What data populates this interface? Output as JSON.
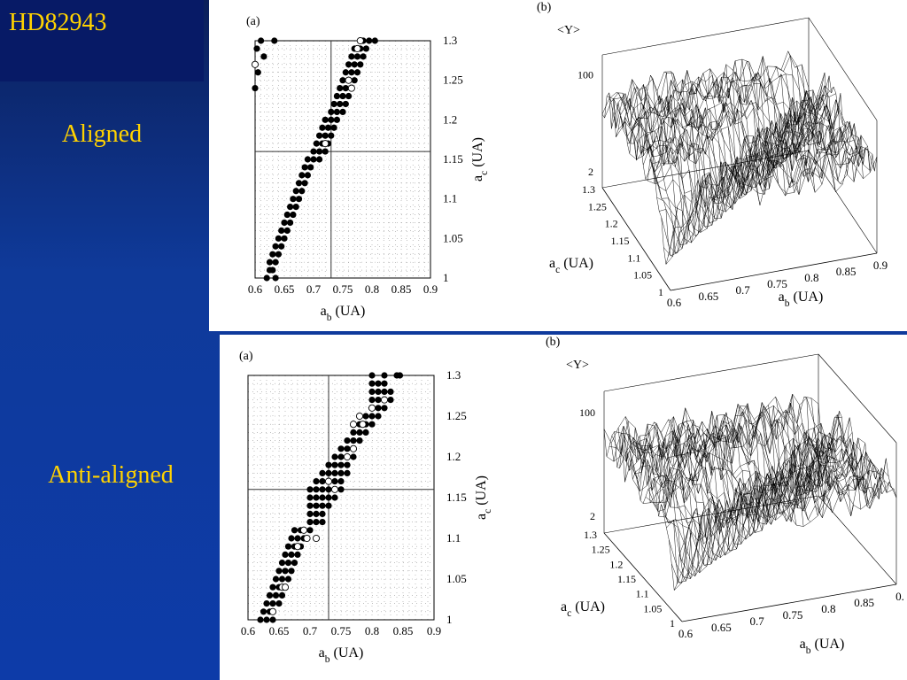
{
  "slide": {
    "title": "HD82943",
    "labels": {
      "aligned": "Aligned",
      "anti_aligned": "Anti-aligned"
    },
    "colors": {
      "background": "#0d3ba8",
      "title_box": "#071a66",
      "text": "#ffd200"
    }
  },
  "chart_data": [
    {
      "type": "scatter",
      "panel_label": "(a)",
      "group": "Aligned",
      "xlabel": "a_b (UA)",
      "ylabel": "a_c (UA)",
      "xlim": [
        0.6,
        0.9
      ],
      "ylim": [
        1.0,
        1.3
      ],
      "xticks": [
        "0.6",
        "0.65",
        "0.7",
        "0.75",
        "0.8",
        "0.85",
        "0.9"
      ],
      "yticks": [
        "1",
        "1.05",
        "1.1",
        "1.15",
        "1.2",
        "1.25",
        "1.3"
      ],
      "marked_lines": {
        "x": 0.73,
        "y": 1.16
      },
      "grid": "dotted",
      "filled": [
        [
          0.62,
          1.0
        ],
        [
          0.635,
          1.0
        ],
        [
          0.625,
          1.01
        ],
        [
          0.63,
          1.01
        ],
        [
          0.625,
          1.02
        ],
        [
          0.635,
          1.02
        ],
        [
          0.63,
          1.03
        ],
        [
          0.64,
          1.03
        ],
        [
          0.635,
          1.04
        ],
        [
          0.645,
          1.04
        ],
        [
          0.64,
          1.05
        ],
        [
          0.65,
          1.05
        ],
        [
          0.645,
          1.06
        ],
        [
          0.655,
          1.06
        ],
        [
          0.65,
          1.07
        ],
        [
          0.66,
          1.07
        ],
        [
          0.655,
          1.08
        ],
        [
          0.665,
          1.08
        ],
        [
          0.66,
          1.09
        ],
        [
          0.67,
          1.09
        ],
        [
          0.665,
          1.1
        ],
        [
          0.675,
          1.1
        ],
        [
          0.67,
          1.11
        ],
        [
          0.68,
          1.11
        ],
        [
          0.675,
          1.12
        ],
        [
          0.685,
          1.12
        ],
        [
          0.68,
          1.13
        ],
        [
          0.69,
          1.13
        ],
        [
          0.685,
          1.14
        ],
        [
          0.695,
          1.14
        ],
        [
          0.69,
          1.15
        ],
        [
          0.7,
          1.15
        ],
        [
          0.71,
          1.15
        ],
        [
          0.7,
          1.16
        ],
        [
          0.71,
          1.16
        ],
        [
          0.72,
          1.16
        ],
        [
          0.705,
          1.17
        ],
        [
          0.715,
          1.17
        ],
        [
          0.725,
          1.17
        ],
        [
          0.71,
          1.18
        ],
        [
          0.72,
          1.18
        ],
        [
          0.73,
          1.18
        ],
        [
          0.715,
          1.19
        ],
        [
          0.725,
          1.19
        ],
        [
          0.735,
          1.19
        ],
        [
          0.72,
          1.2
        ],
        [
          0.73,
          1.2
        ],
        [
          0.74,
          1.2
        ],
        [
          0.73,
          1.21
        ],
        [
          0.74,
          1.21
        ],
        [
          0.75,
          1.21
        ],
        [
          0.735,
          1.22
        ],
        [
          0.745,
          1.22
        ],
        [
          0.755,
          1.22
        ],
        [
          0.74,
          1.23
        ],
        [
          0.75,
          1.23
        ],
        [
          0.76,
          1.23
        ],
        [
          0.745,
          1.24
        ],
        [
          0.755,
          1.24
        ],
        [
          0.765,
          1.24
        ],
        [
          0.75,
          1.25
        ],
        [
          0.76,
          1.25
        ],
        [
          0.77,
          1.25
        ],
        [
          0.755,
          1.26
        ],
        [
          0.765,
          1.26
        ],
        [
          0.775,
          1.26
        ],
        [
          0.76,
          1.27
        ],
        [
          0.77,
          1.27
        ],
        [
          0.78,
          1.27
        ],
        [
          0.765,
          1.28
        ],
        [
          0.775,
          1.28
        ],
        [
          0.785,
          1.28
        ],
        [
          0.77,
          1.29
        ],
        [
          0.78,
          1.29
        ],
        [
          0.79,
          1.29
        ],
        [
          0.785,
          1.3
        ],
        [
          0.795,
          1.3
        ],
        [
          0.805,
          1.3
        ],
        [
          0.603,
          1.29
        ],
        [
          0.61,
          1.3
        ],
        [
          0.615,
          1.28
        ],
        [
          0.605,
          1.26
        ],
        [
          0.6,
          1.24
        ],
        [
          0.633,
          1.3
        ]
      ],
      "open": [
        [
          0.6,
          1.27
        ],
        [
          0.78,
          1.3
        ],
        [
          0.76,
          1.25
        ],
        [
          0.765,
          1.24
        ],
        [
          0.72,
          1.17
        ],
        [
          0.775,
          1.29
        ]
      ]
    },
    {
      "type": "surface3d",
      "panel_label": "(b)",
      "group": "Aligned",
      "zlabel": "<Y>",
      "xlabel": "a_b (UA)",
      "ylabel": "a_c (UA)",
      "xticks": [
        "0.6",
        "0.65",
        "0.7",
        "0.75",
        "0.8",
        "0.85",
        "0.9"
      ],
      "yticks": [
        "1",
        "1.05",
        "1.1",
        "1.15",
        "1.2",
        "1.25",
        "1.3"
      ],
      "zticks": [
        "2",
        "100"
      ]
    },
    {
      "type": "scatter",
      "panel_label": "(a)",
      "group": "Anti-aligned",
      "xlabel": "a_b (UA)",
      "ylabel": "a_c (UA)",
      "xlim": [
        0.6,
        0.9
      ],
      "ylim": [
        1.0,
        1.3
      ],
      "xticks": [
        "0.6",
        "0.65",
        "0.7",
        "0.75",
        "0.8",
        "0.85",
        "0.9"
      ],
      "yticks": [
        "1",
        "1.05",
        "1.1",
        "1.15",
        "1.2",
        "1.25",
        "1.3"
      ],
      "marked_lines": {
        "x": 0.73,
        "y": 1.16
      },
      "grid": "dotted",
      "filled": [
        [
          0.62,
          1.0
        ],
        [
          0.63,
          1.0
        ],
        [
          0.64,
          1.0
        ],
        [
          0.625,
          1.01
        ],
        [
          0.635,
          1.01
        ],
        [
          0.63,
          1.02
        ],
        [
          0.64,
          1.02
        ],
        [
          0.65,
          1.02
        ],
        [
          0.635,
          1.03
        ],
        [
          0.645,
          1.03
        ],
        [
          0.655,
          1.03
        ],
        [
          0.64,
          1.04
        ],
        [
          0.65,
          1.04
        ],
        [
          0.66,
          1.04
        ],
        [
          0.645,
          1.05
        ],
        [
          0.655,
          1.05
        ],
        [
          0.665,
          1.05
        ],
        [
          0.65,
          1.06
        ],
        [
          0.66,
          1.06
        ],
        [
          0.67,
          1.06
        ],
        [
          0.655,
          1.07
        ],
        [
          0.665,
          1.07
        ],
        [
          0.675,
          1.07
        ],
        [
          0.66,
          1.08
        ],
        [
          0.67,
          1.08
        ],
        [
          0.68,
          1.08
        ],
        [
          0.665,
          1.09
        ],
        [
          0.675,
          1.09
        ],
        [
          0.685,
          1.09
        ],
        [
          0.67,
          1.1
        ],
        [
          0.68,
          1.1
        ],
        [
          0.69,
          1.1
        ],
        [
          0.675,
          1.11
        ],
        [
          0.685,
          1.11
        ],
        [
          0.7,
          1.11
        ],
        [
          0.7,
          1.12
        ],
        [
          0.71,
          1.12
        ],
        [
          0.72,
          1.12
        ],
        [
          0.7,
          1.13
        ],
        [
          0.71,
          1.13
        ],
        [
          0.72,
          1.13
        ],
        [
          0.7,
          1.14
        ],
        [
          0.71,
          1.14
        ],
        [
          0.72,
          1.14
        ],
        [
          0.73,
          1.14
        ],
        [
          0.7,
          1.15
        ],
        [
          0.71,
          1.15
        ],
        [
          0.72,
          1.15
        ],
        [
          0.73,
          1.15
        ],
        [
          0.74,
          1.15
        ],
        [
          0.7,
          1.16
        ],
        [
          0.71,
          1.16
        ],
        [
          0.72,
          1.16
        ],
        [
          0.73,
          1.16
        ],
        [
          0.74,
          1.16
        ],
        [
          0.75,
          1.16
        ],
        [
          0.71,
          1.17
        ],
        [
          0.72,
          1.17
        ],
        [
          0.73,
          1.17
        ],
        [
          0.74,
          1.17
        ],
        [
          0.75,
          1.17
        ],
        [
          0.72,
          1.18
        ],
        [
          0.73,
          1.18
        ],
        [
          0.74,
          1.18
        ],
        [
          0.75,
          1.18
        ],
        [
          0.76,
          1.18
        ],
        [
          0.73,
          1.19
        ],
        [
          0.74,
          1.19
        ],
        [
          0.75,
          1.19
        ],
        [
          0.76,
          1.19
        ],
        [
          0.74,
          1.2
        ],
        [
          0.75,
          1.2
        ],
        [
          0.76,
          1.2
        ],
        [
          0.77,
          1.2
        ],
        [
          0.75,
          1.21
        ],
        [
          0.76,
          1.21
        ],
        [
          0.77,
          1.21
        ],
        [
          0.76,
          1.22
        ],
        [
          0.77,
          1.22
        ],
        [
          0.78,
          1.22
        ],
        [
          0.77,
          1.23
        ],
        [
          0.78,
          1.23
        ],
        [
          0.79,
          1.23
        ],
        [
          0.78,
          1.24
        ],
        [
          0.79,
          1.24
        ],
        [
          0.8,
          1.24
        ],
        [
          0.79,
          1.25
        ],
        [
          0.8,
          1.25
        ],
        [
          0.81,
          1.25
        ],
        [
          0.8,
          1.26
        ],
        [
          0.81,
          1.26
        ],
        [
          0.82,
          1.26
        ],
        [
          0.8,
          1.27
        ],
        [
          0.81,
          1.27
        ],
        [
          0.83,
          1.27
        ],
        [
          0.8,
          1.28
        ],
        [
          0.81,
          1.28
        ],
        [
          0.82,
          1.28
        ],
        [
          0.83,
          1.28
        ],
        [
          0.8,
          1.29
        ],
        [
          0.81,
          1.29
        ],
        [
          0.82,
          1.29
        ],
        [
          0.8,
          1.3
        ],
        [
          0.82,
          1.3
        ],
        [
          0.84,
          1.3
        ],
        [
          0.845,
          1.3
        ]
      ],
      "open": [
        [
          0.69,
          1.11
        ],
        [
          0.695,
          1.1
        ],
        [
          0.68,
          1.09
        ],
        [
          0.71,
          1.1
        ],
        [
          0.655,
          1.04
        ],
        [
          0.66,
          1.04
        ],
        [
          0.64,
          1.01
        ],
        [
          0.77,
          1.21
        ],
        [
          0.78,
          1.25
        ],
        [
          0.785,
          1.24
        ],
        [
          0.77,
          1.24
        ],
        [
          0.74,
          1.16
        ],
        [
          0.73,
          1.17
        ],
        [
          0.8,
          1.26
        ],
        [
          0.82,
          1.27
        ],
        [
          0.76,
          1.2
        ]
      ]
    },
    {
      "type": "surface3d",
      "panel_label": "(b)",
      "group": "Anti-aligned",
      "zlabel": "<Y>",
      "xlabel": "a_b (UA)",
      "ylabel": "a_c (UA)",
      "xticks": [
        "0.6",
        "0.65",
        "0.7",
        "0.75",
        "0.8",
        "0.85",
        "0."
      ],
      "yticks": [
        "1",
        "1.05",
        "1.1",
        "1.15",
        "1.2",
        "1.25",
        "1.3"
      ],
      "zticks": [
        "2",
        "100"
      ]
    }
  ]
}
